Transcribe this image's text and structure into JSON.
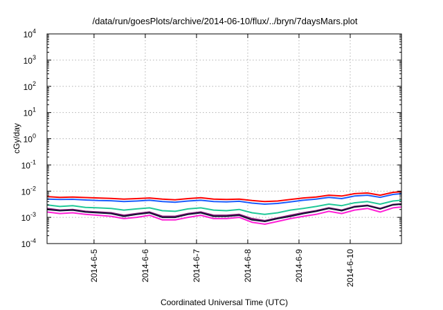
{
  "chart_data": {
    "type": "line",
    "title": "/data/run/goesPlots/archive/2014-06-10/flux/../bryn/7daysMars.plot",
    "xlabel": "Coordinated Universal Time (UTC)",
    "ylabel": "cGy/day",
    "yscale": "log",
    "ylim": [
      0.0001,
      10000
    ],
    "xlim": [
      "2014-06-04T02:00",
      "2014-06-11T00:00"
    ],
    "grid": true,
    "legend": "none",
    "x_ticks": [
      "2014-6-5",
      "2014-6-6",
      "2014-6-7",
      "2014-6-8",
      "2014-6-9",
      "2014-6-10"
    ],
    "x_tick_dates": [
      "2014-06-05",
      "2014-06-06",
      "2014-06-07",
      "2014-06-08",
      "2014-06-09",
      "2014-06-10"
    ],
    "y_ticks": [
      {
        "value": 0.0001,
        "base": "10",
        "exp": "-4"
      },
      {
        "value": 0.001,
        "base": "10",
        "exp": "-3"
      },
      {
        "value": 0.01,
        "base": "10",
        "exp": "-2"
      },
      {
        "value": 0.1,
        "base": "10",
        "exp": "-1"
      },
      {
        "value": 1,
        "base": "10",
        "exp": "0"
      },
      {
        "value": 10,
        "base": "10",
        "exp": "1"
      },
      {
        "value": 100,
        "base": "10",
        "exp": "2"
      },
      {
        "value": 1000,
        "base": "10",
        "exp": "3"
      },
      {
        "value": 10000,
        "base": "10",
        "exp": "4"
      }
    ],
    "x": [
      "2014-06-04T02:00",
      "2014-06-04T08:00",
      "2014-06-04T14:00",
      "2014-06-04T20:00",
      "2014-06-05T02:00",
      "2014-06-05T08:00",
      "2014-06-05T14:00",
      "2014-06-05T20:00",
      "2014-06-06T02:00",
      "2014-06-06T08:00",
      "2014-06-06T14:00",
      "2014-06-06T20:00",
      "2014-06-07T02:00",
      "2014-06-07T08:00",
      "2014-06-07T14:00",
      "2014-06-07T20:00",
      "2014-06-08T02:00",
      "2014-06-08T08:00",
      "2014-06-08T14:00",
      "2014-06-08T20:00",
      "2014-06-09T02:00",
      "2014-06-09T08:00",
      "2014-06-09T14:00",
      "2014-06-09T20:00",
      "2014-06-10T02:00",
      "2014-06-10T08:00",
      "2014-06-10T14:00",
      "2014-06-10T20:00",
      "2014-06-11T00:00"
    ],
    "series": [
      {
        "color": "#ff0000",
        "values": [
          0.0062,
          0.0058,
          0.006,
          0.0057,
          0.0055,
          0.0053,
          0.005,
          0.0052,
          0.0055,
          0.005,
          0.0047,
          0.0052,
          0.0056,
          0.005,
          0.0048,
          0.005,
          0.0044,
          0.004,
          0.0042,
          0.0048,
          0.0055,
          0.006,
          0.007,
          0.0065,
          0.008,
          0.0085,
          0.007,
          0.009,
          0.0095
        ]
      },
      {
        "color": "#1a5cff",
        "values": [
          0.005,
          0.0048,
          0.0049,
          0.0046,
          0.0044,
          0.0043,
          0.004,
          0.0042,
          0.0045,
          0.004,
          0.0038,
          0.0042,
          0.0045,
          0.004,
          0.0039,
          0.0041,
          0.0035,
          0.0032,
          0.0034,
          0.0039,
          0.0045,
          0.005,
          0.0058,
          0.0052,
          0.0065,
          0.007,
          0.0058,
          0.0075,
          0.008
        ]
      },
      {
        "color": "#1fc897",
        "values": [
          0.003,
          0.0026,
          0.0028,
          0.0024,
          0.0023,
          0.0022,
          0.0019,
          0.0021,
          0.0023,
          0.0018,
          0.0017,
          0.0021,
          0.0023,
          0.0019,
          0.0018,
          0.002,
          0.0015,
          0.0013,
          0.0015,
          0.0019,
          0.0022,
          0.0026,
          0.0032,
          0.0028,
          0.0036,
          0.004,
          0.0032,
          0.0042,
          0.0045
        ]
      },
      {
        "color": "#8a1a7a",
        "values": [
          0.0022,
          0.0019,
          0.002,
          0.0017,
          0.0016,
          0.0015,
          0.0012,
          0.0014,
          0.0016,
          0.0011,
          0.0011,
          0.0014,
          0.0016,
          0.0012,
          0.0012,
          0.0013,
          0.0009,
          0.00075,
          0.00095,
          0.0012,
          0.0015,
          0.0018,
          0.0023,
          0.0019,
          0.0026,
          0.0029,
          0.0022,
          0.0031,
          0.0033
        ]
      },
      {
        "color": "#111133",
        "values": [
          0.002,
          0.0018,
          0.0019,
          0.0016,
          0.0015,
          0.0014,
          0.0011,
          0.0013,
          0.0015,
          0.001,
          0.001,
          0.0013,
          0.0015,
          0.0011,
          0.0011,
          0.0012,
          0.0008,
          0.0007,
          0.0009,
          0.0011,
          0.0014,
          0.0017,
          0.0022,
          0.0018,
          0.0025,
          0.0028,
          0.0021,
          0.003,
          0.0032
        ]
      },
      {
        "color": "#ff1fd6",
        "values": [
          0.0016,
          0.0014,
          0.0015,
          0.0013,
          0.0012,
          0.0011,
          0.0009,
          0.001,
          0.0012,
          0.0008,
          0.0008,
          0.001,
          0.0012,
          0.0009,
          0.0009,
          0.001,
          0.00065,
          0.00055,
          0.0007,
          0.0009,
          0.0011,
          0.0013,
          0.0017,
          0.0014,
          0.0019,
          0.0022,
          0.0016,
          0.0023,
          0.0025
        ]
      }
    ]
  }
}
